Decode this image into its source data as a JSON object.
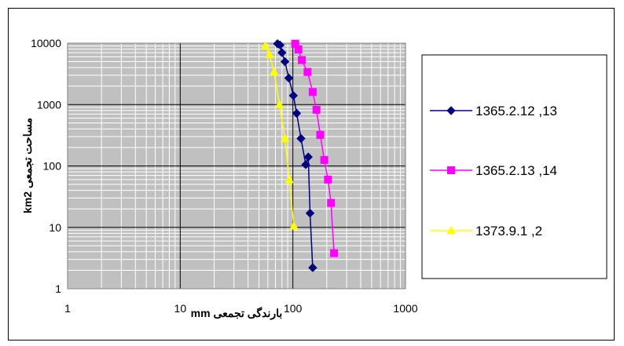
{
  "chart_data": {
    "type": "line",
    "xscale": "log",
    "yscale": "log",
    "xlim": [
      1,
      1000
    ],
    "ylim": [
      1,
      10000
    ],
    "xticks": [
      "1",
      "10",
      "100",
      "1000"
    ],
    "yticks": [
      "1",
      "10",
      "100",
      "1000",
      "10000"
    ],
    "xlabel": "بارندگی تجمعی mm",
    "ylabel": "مساحت تجمعی km2",
    "grid": "major and minor",
    "legend_position": "right",
    "series": [
      {
        "name": "1365.2.12 ,13",
        "color": "#000080",
        "marker": "diamond",
        "x": [
          73,
          77,
          80,
          85,
          92,
          101,
          108,
          118,
          130,
          137,
          142,
          150
        ],
        "y": [
          9800,
          9300,
          7000,
          5000,
          2700,
          1400,
          720,
          280,
          105,
          140,
          17,
          2.2
        ]
      },
      {
        "name": "1365.2.13 ,14",
        "color": "#ff00ff",
        "marker": "square",
        "x": [
          105,
          112,
          120,
          135,
          150,
          162,
          175,
          190,
          205,
          218,
          232
        ],
        "y": [
          9800,
          7900,
          5300,
          3400,
          1600,
          820,
          320,
          125,
          60,
          25,
          3.8
        ]
      },
      {
        "name": "1373.9.1 ,2",
        "color": "#ffff00",
        "marker": "triangle",
        "x": [
          57,
          62,
          68,
          76,
          85,
          93,
          102
        ],
        "y": [
          9000,
          6500,
          3400,
          1000,
          280,
          60,
          10.5
        ]
      }
    ]
  }
}
